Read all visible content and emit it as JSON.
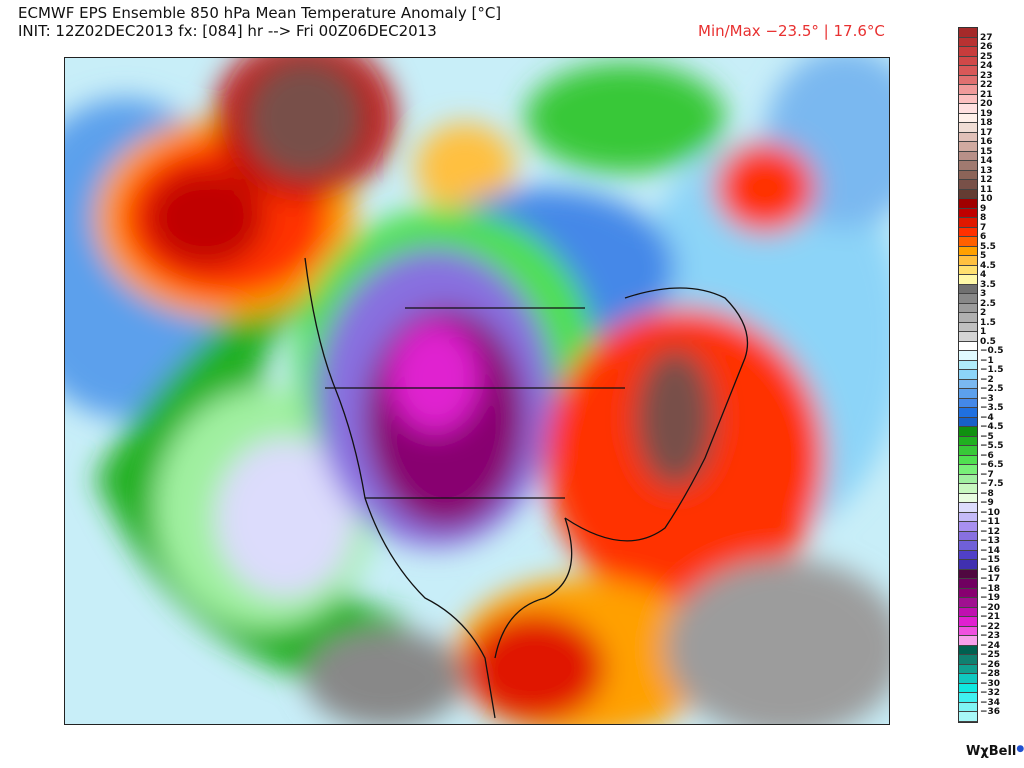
{
  "header": {
    "title": "ECMWF EPS Ensemble 850 hPa Mean Temperature Anomaly [°C]",
    "init": "INIT: 12Z02DEC2013 fx: [084] hr --> Fri 00Z06DEC2013",
    "minmax": "Min/Max −23.5° | 17.6°C"
  },
  "colorbar": {
    "labels": [
      "27",
      "26",
      "25",
      "24",
      "23",
      "22",
      "21",
      "20",
      "19",
      "18",
      "17",
      "16",
      "15",
      "14",
      "13",
      "12",
      "11",
      "10",
      "9",
      "8",
      "7",
      "6",
      "5.5",
      "5",
      "4.5",
      "4",
      "3.5",
      "3",
      "2.5",
      "2",
      "1.5",
      "1",
      "0.5",
      "−0.5",
      "−1",
      "−1.5",
      "−2",
      "−2.5",
      "−3",
      "−3.5",
      "−4",
      "−4.5",
      "−5",
      "−5.5",
      "−6",
      "−6.5",
      "−7",
      "−7.5",
      "−8",
      "−9",
      "−10",
      "−11",
      "−12",
      "−13",
      "−14",
      "−15",
      "−16",
      "−17",
      "−18",
      "−19",
      "−20",
      "−21",
      "−22",
      "−23",
      "−24",
      "−25",
      "−26",
      "−28",
      "−30",
      "−32",
      "−34",
      "−36"
    ],
    "colors": [
      "#a52a2a",
      "#b83232",
      "#c83c3c",
      "#d04848",
      "#d85858",
      "#e07070",
      "#f09a9a",
      "#fcc0c0",
      "#ffe0e0",
      "#fff0ea",
      "#f0ddd5",
      "#e0c0b8",
      "#d0aaa0",
      "#b89088",
      "#a07a70",
      "#8c6458",
      "#785048",
      "#643c32",
      "#a00000",
      "#c00000",
      "#e01800",
      "#ff3000",
      "#ff6000",
      "#ffa000",
      "#ffc040",
      "#ffe070",
      "#fff8a8",
      "#707070",
      "#888888",
      "#9c9c9c",
      "#b0b0b0",
      "#c0c0c0",
      "#d4d4d4",
      "#ffffff",
      "#e0faff",
      "#b0ecfa",
      "#8cd4f8",
      "#7ab8f0",
      "#5ca0ec",
      "#4488e8",
      "#2070e0",
      "#1860c8",
      "#109010",
      "#20b020",
      "#38c838",
      "#50e050",
      "#78f078",
      "#a0f0a0",
      "#c8f8c0",
      "#e8fde0",
      "#dcdcfc",
      "#c4baf8",
      "#a890f0",
      "#8870e0",
      "#7060d8",
      "#5040c8",
      "#4030b0",
      "#500840",
      "#700060",
      "#880070",
      "#a01090",
      "#c010b0",
      "#e020d0",
      "#f050e0",
      "#f8a0ec",
      "#006050",
      "#108070",
      "#10a090",
      "#10c8c0",
      "#10e8e0",
      "#40f0f0",
      "#80f4f4",
      "#a8f8f8"
    ]
  },
  "logo": {
    "text": "WxBell"
  }
}
